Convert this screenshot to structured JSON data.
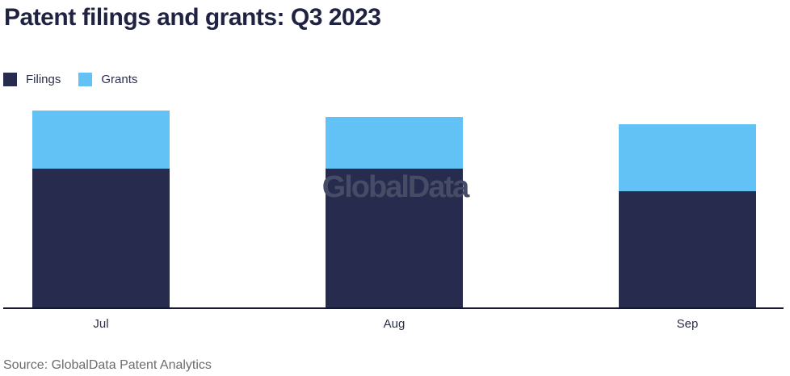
{
  "title": "Patent filings and grants: Q3 2023",
  "watermark": "GlobalData",
  "source": "Source: GlobalData Patent Analytics",
  "colors": {
    "filings": "#272b4d",
    "grants": "#62c1f5",
    "title_text": "#1f2240",
    "axis_line": "#14172e",
    "label_text": "#2b2e4a",
    "source_text": "#6c6c6c",
    "watermark_text": "#474c66",
    "background": "#ffffff"
  },
  "legend": {
    "items": [
      {
        "label": "Filings",
        "color": "#272b4d"
      },
      {
        "label": "Grants",
        "color": "#62c1f5"
      }
    ]
  },
  "chart_data": {
    "type": "bar",
    "stacked": true,
    "title": "Patent filings and grants: Q3 2023",
    "categories": [
      "Jul",
      "Aug",
      "Sep"
    ],
    "series": [
      {
        "name": "Filings",
        "color": "#272b4d",
        "values": [
          172,
          172,
          144
        ]
      },
      {
        "name": "Grants",
        "color": "#62c1f5",
        "values": [
          72,
          64,
          83
        ]
      }
    ],
    "stacked_totals": [
      244,
      236,
      227
    ],
    "value_axis": "none shown; values are relative units estimated from bar pixel heights",
    "xlabel": "",
    "ylabel": "",
    "grid": false,
    "legend_position": "top-left",
    "plot_height_units": 244
  }
}
